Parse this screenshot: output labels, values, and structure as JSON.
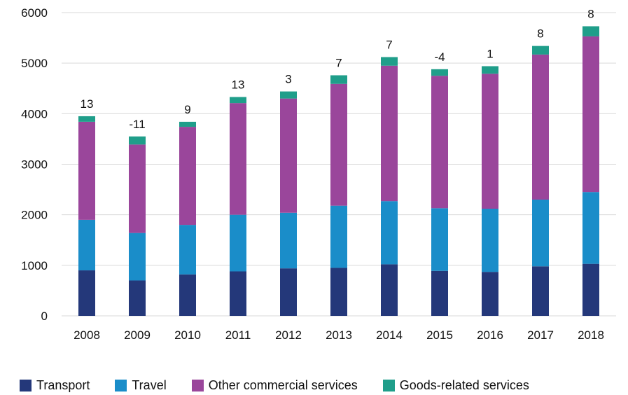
{
  "chart_data": {
    "type": "bar",
    "stacked": true,
    "categories": [
      "2008",
      "2009",
      "2010",
      "2011",
      "2012",
      "2013",
      "2014",
      "2015",
      "2016",
      "2017",
      "2018"
    ],
    "series": [
      {
        "name": "Transport",
        "color": "#24387a",
        "values": [
          900,
          700,
          820,
          880,
          940,
          950,
          1020,
          890,
          870,
          980,
          1030
        ]
      },
      {
        "name": "Travel",
        "color": "#1a8dc9",
        "values": [
          1000,
          940,
          980,
          1120,
          1100,
          1230,
          1250,
          1240,
          1250,
          1320,
          1420
        ]
      },
      {
        "name": "Other commercial services",
        "color": "#9a469b",
        "values": [
          1940,
          1750,
          1940,
          2210,
          2260,
          2410,
          2680,
          2620,
          2670,
          2870,
          3080
        ]
      },
      {
        "name": "Goods-related services",
        "color": "#1f9e8a",
        "values": [
          110,
          160,
          100,
          120,
          140,
          170,
          170,
          130,
          150,
          170,
          200
        ]
      }
    ],
    "data_labels": [
      "13",
      "-11",
      "9",
      "13",
      "3",
      "7",
      "7",
      "-4",
      "1",
      "8",
      "8"
    ],
    "ylim": [
      0,
      6000
    ],
    "yticks": [
      0,
      1000,
      2000,
      3000,
      4000,
      5000,
      6000
    ],
    "grid": true,
    "legend_position": "bottom"
  }
}
